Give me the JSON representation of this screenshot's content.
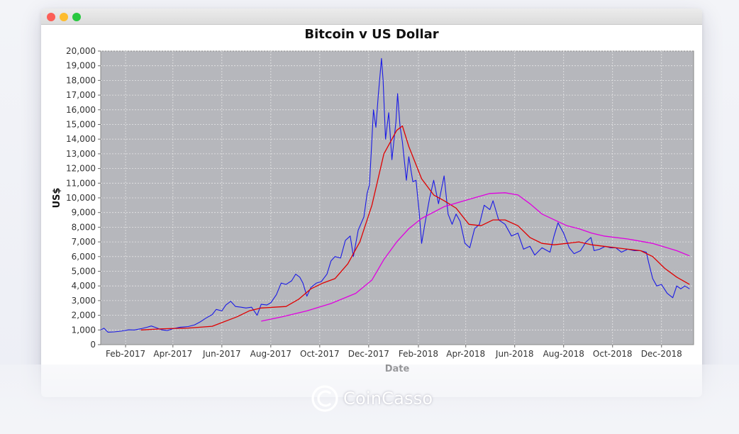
{
  "window": {
    "controls": [
      "close",
      "minimize",
      "zoom"
    ]
  },
  "brand": {
    "name": "CoinCasso",
    "icon": "coincasso-logo-icon"
  },
  "chart_data": {
    "type": "line",
    "title": "Bitcoin v US Dollar",
    "xlabel": "Date",
    "ylabel": "US$",
    "ylim": [
      0,
      20000
    ],
    "yticks": [
      0,
      1000,
      2000,
      3000,
      4000,
      5000,
      6000,
      7000,
      8000,
      9000,
      10000,
      11000,
      12000,
      13000,
      14000,
      15000,
      16000,
      17000,
      18000,
      19000,
      20000
    ],
    "ytick_labels": [
      "0",
      "1,000",
      "2,000",
      "3,000",
      "4,000",
      "5,000",
      "6,000",
      "7,000",
      "8,000",
      "9,000",
      "10,000",
      "11,000",
      "12,000",
      "13,000",
      "14,000",
      "15,000",
      "16,000",
      "17,000",
      "18,000",
      "19,000",
      "20,000"
    ],
    "xlim": [
      "2017-01-01",
      "2019-01-10"
    ],
    "xticks": [
      {
        "date": "2017-02-01",
        "label": "Feb-2017"
      },
      {
        "date": "2017-04-01",
        "label": "Apr-2017"
      },
      {
        "date": "2017-06-01",
        "label": "Jun-2017"
      },
      {
        "date": "2017-08-01",
        "label": "Aug-2017"
      },
      {
        "date": "2017-10-01",
        "label": "Oct-2017"
      },
      {
        "date": "2017-12-01",
        "label": "Dec-2017"
      },
      {
        "date": "2018-02-01",
        "label": "Feb-2018"
      },
      {
        "date": "2018-04-01",
        "label": "Apr-2018"
      },
      {
        "date": "2018-06-01",
        "label": "Jun-2018"
      },
      {
        "date": "2018-08-01",
        "label": "Aug-2018"
      },
      {
        "date": "2018-10-01",
        "label": "Oct-2018"
      },
      {
        "date": "2018-12-01",
        "label": "Dec-2018"
      }
    ],
    "grid": true,
    "colors": {
      "plot_bg": "#b6b7bc",
      "grid": "#e6e6e6"
    },
    "series": [
      {
        "color": "#1a1ae6",
        "points": [
          [
            "2017-01-01",
            1000
          ],
          [
            "2017-01-05",
            1120
          ],
          [
            "2017-01-10",
            850
          ],
          [
            "2017-01-18",
            870
          ],
          [
            "2017-01-26",
            920
          ],
          [
            "2017-02-05",
            1010
          ],
          [
            "2017-02-12",
            1000
          ],
          [
            "2017-02-20",
            1080
          ],
          [
            "2017-02-28",
            1190
          ],
          [
            "2017-03-05",
            1270
          ],
          [
            "2017-03-10",
            1180
          ],
          [
            "2017-03-18",
            1010
          ],
          [
            "2017-03-25",
            960
          ],
          [
            "2017-04-01",
            1080
          ],
          [
            "2017-04-10",
            1190
          ],
          [
            "2017-04-20",
            1230
          ],
          [
            "2017-04-28",
            1350
          ],
          [
            "2017-05-05",
            1550
          ],
          [
            "2017-05-12",
            1800
          ],
          [
            "2017-05-20",
            2050
          ],
          [
            "2017-05-25",
            2400
          ],
          [
            "2017-06-01",
            2300
          ],
          [
            "2017-06-06",
            2700
          ],
          [
            "2017-06-12",
            2950
          ],
          [
            "2017-06-18",
            2600
          ],
          [
            "2017-06-25",
            2550
          ],
          [
            "2017-07-01",
            2500
          ],
          [
            "2017-07-08",
            2550
          ],
          [
            "2017-07-15",
            2000
          ],
          [
            "2017-07-20",
            2750
          ],
          [
            "2017-07-27",
            2700
          ],
          [
            "2017-08-01",
            2850
          ],
          [
            "2017-08-08",
            3400
          ],
          [
            "2017-08-14",
            4200
          ],
          [
            "2017-08-20",
            4100
          ],
          [
            "2017-08-27",
            4350
          ],
          [
            "2017-09-01",
            4800
          ],
          [
            "2017-09-06",
            4600
          ],
          [
            "2017-09-10",
            4200
          ],
          [
            "2017-09-15",
            3300
          ],
          [
            "2017-09-20",
            3900
          ],
          [
            "2017-09-27",
            4200
          ],
          [
            "2017-10-03",
            4300
          ],
          [
            "2017-10-10",
            4800
          ],
          [
            "2017-10-15",
            5700
          ],
          [
            "2017-10-20",
            6000
          ],
          [
            "2017-10-27",
            5900
          ],
          [
            "2017-11-02",
            7100
          ],
          [
            "2017-11-08",
            7400
          ],
          [
            "2017-11-12",
            6000
          ],
          [
            "2017-11-18",
            7800
          ],
          [
            "2017-11-25",
            8700
          ],
          [
            "2017-11-29",
            10300
          ],
          [
            "2017-12-02",
            10900
          ],
          [
            "2017-12-07",
            16000
          ],
          [
            "2017-12-10",
            14800
          ],
          [
            "2017-12-13",
            17000
          ],
          [
            "2017-12-17",
            19500
          ],
          [
            "2017-12-19",
            18000
          ],
          [
            "2017-12-22",
            14000
          ],
          [
            "2017-12-26",
            15800
          ],
          [
            "2017-12-30",
            12600
          ],
          [
            "2018-01-04",
            15200
          ],
          [
            "2018-01-06",
            17100
          ],
          [
            "2018-01-09",
            14900
          ],
          [
            "2018-01-12",
            13800
          ],
          [
            "2018-01-17",
            11200
          ],
          [
            "2018-01-20",
            12800
          ],
          [
            "2018-01-25",
            11100
          ],
          [
            "2018-01-29",
            11200
          ],
          [
            "2018-02-02",
            9000
          ],
          [
            "2018-02-05",
            6900
          ],
          [
            "2018-02-09",
            8200
          ],
          [
            "2018-02-15",
            10000
          ],
          [
            "2018-02-20",
            11200
          ],
          [
            "2018-02-26",
            9600
          ],
          [
            "2018-03-05",
            11500
          ],
          [
            "2018-03-10",
            8900
          ],
          [
            "2018-03-15",
            8200
          ],
          [
            "2018-03-20",
            8900
          ],
          [
            "2018-03-25",
            8400
          ],
          [
            "2018-03-31",
            6900
          ],
          [
            "2018-04-06",
            6600
          ],
          [
            "2018-04-12",
            7900
          ],
          [
            "2018-04-18",
            8200
          ],
          [
            "2018-04-24",
            9500
          ],
          [
            "2018-05-01",
            9200
          ],
          [
            "2018-05-05",
            9800
          ],
          [
            "2018-05-12",
            8500
          ],
          [
            "2018-05-20",
            8200
          ],
          [
            "2018-05-28",
            7400
          ],
          [
            "2018-06-05",
            7600
          ],
          [
            "2018-06-12",
            6500
          ],
          [
            "2018-06-20",
            6700
          ],
          [
            "2018-06-26",
            6100
          ],
          [
            "2018-07-05",
            6600
          ],
          [
            "2018-07-15",
            6300
          ],
          [
            "2018-07-20",
            7400
          ],
          [
            "2018-07-25",
            8300
          ],
          [
            "2018-08-01",
            7600
          ],
          [
            "2018-08-08",
            6600
          ],
          [
            "2018-08-14",
            6200
          ],
          [
            "2018-08-22",
            6400
          ],
          [
            "2018-08-29",
            7000
          ],
          [
            "2018-09-04",
            7300
          ],
          [
            "2018-09-08",
            6400
          ],
          [
            "2018-09-15",
            6500
          ],
          [
            "2018-09-22",
            6700
          ],
          [
            "2018-09-28",
            6600
          ],
          [
            "2018-10-05",
            6600
          ],
          [
            "2018-10-12",
            6300
          ],
          [
            "2018-10-20",
            6500
          ],
          [
            "2018-10-28",
            6400
          ],
          [
            "2018-11-05",
            6400
          ],
          [
            "2018-11-12",
            6300
          ],
          [
            "2018-11-15",
            5600
          ],
          [
            "2018-11-20",
            4500
          ],
          [
            "2018-11-25",
            4000
          ],
          [
            "2018-12-01",
            4100
          ],
          [
            "2018-12-08",
            3500
          ],
          [
            "2018-12-15",
            3200
          ],
          [
            "2018-12-20",
            4000
          ],
          [
            "2018-12-25",
            3800
          ],
          [
            "2018-12-30",
            4000
          ],
          [
            "2019-01-05",
            3800
          ]
        ]
      },
      {
        "color": "#e00000",
        "points": [
          [
            "2017-02-20",
            1000
          ],
          [
            "2017-03-20",
            1080
          ],
          [
            "2017-04-20",
            1130
          ],
          [
            "2017-05-20",
            1250
          ],
          [
            "2017-06-20",
            1900
          ],
          [
            "2017-07-05",
            2300
          ],
          [
            "2017-07-20",
            2500
          ],
          [
            "2017-08-05",
            2550
          ],
          [
            "2017-08-20",
            2600
          ],
          [
            "2017-09-05",
            3100
          ],
          [
            "2017-09-20",
            3800
          ],
          [
            "2017-10-05",
            4200
          ],
          [
            "2017-10-20",
            4500
          ],
          [
            "2017-11-05",
            5500
          ],
          [
            "2017-11-20",
            7000
          ],
          [
            "2017-12-05",
            9500
          ],
          [
            "2017-12-20",
            13000
          ],
          [
            "2018-01-05",
            14600
          ],
          [
            "2018-01-12",
            14900
          ],
          [
            "2018-01-20",
            13500
          ],
          [
            "2018-02-05",
            11300
          ],
          [
            "2018-02-20",
            10200
          ],
          [
            "2018-03-05",
            9800
          ],
          [
            "2018-03-20",
            9300
          ],
          [
            "2018-04-05",
            8200
          ],
          [
            "2018-04-20",
            8100
          ],
          [
            "2018-05-05",
            8500
          ],
          [
            "2018-05-20",
            8500
          ],
          [
            "2018-06-05",
            8100
          ],
          [
            "2018-06-20",
            7300
          ],
          [
            "2018-07-05",
            6900
          ],
          [
            "2018-07-20",
            6800
          ],
          [
            "2018-08-05",
            6900
          ],
          [
            "2018-08-20",
            7000
          ],
          [
            "2018-09-05",
            6800
          ],
          [
            "2018-09-20",
            6700
          ],
          [
            "2018-10-05",
            6600
          ],
          [
            "2018-10-20",
            6500
          ],
          [
            "2018-11-05",
            6400
          ],
          [
            "2018-11-20",
            6000
          ],
          [
            "2018-12-05",
            5200
          ],
          [
            "2018-12-20",
            4600
          ],
          [
            "2019-01-05",
            4100
          ]
        ]
      },
      {
        "color": "#e000e0",
        "points": [
          [
            "2017-07-20",
            1600
          ],
          [
            "2017-08-15",
            1900
          ],
          [
            "2017-09-15",
            2300
          ],
          [
            "2017-10-15",
            2800
          ],
          [
            "2017-11-15",
            3500
          ],
          [
            "2017-12-05",
            4400
          ],
          [
            "2017-12-20",
            5800
          ],
          [
            "2018-01-05",
            7000
          ],
          [
            "2018-01-20",
            7900
          ],
          [
            "2018-02-05",
            8600
          ],
          [
            "2018-03-05",
            9400
          ],
          [
            "2018-04-05",
            9900
          ],
          [
            "2018-05-01",
            10300
          ],
          [
            "2018-05-20",
            10350
          ],
          [
            "2018-06-05",
            10200
          ],
          [
            "2018-06-20",
            9600
          ],
          [
            "2018-07-05",
            8900
          ],
          [
            "2018-08-05",
            8100
          ],
          [
            "2018-08-20",
            7900
          ],
          [
            "2018-09-05",
            7600
          ],
          [
            "2018-09-20",
            7400
          ],
          [
            "2018-10-20",
            7200
          ],
          [
            "2018-11-20",
            6900
          ],
          [
            "2018-12-20",
            6400
          ],
          [
            "2019-01-05",
            6050
          ]
        ]
      }
    ]
  }
}
